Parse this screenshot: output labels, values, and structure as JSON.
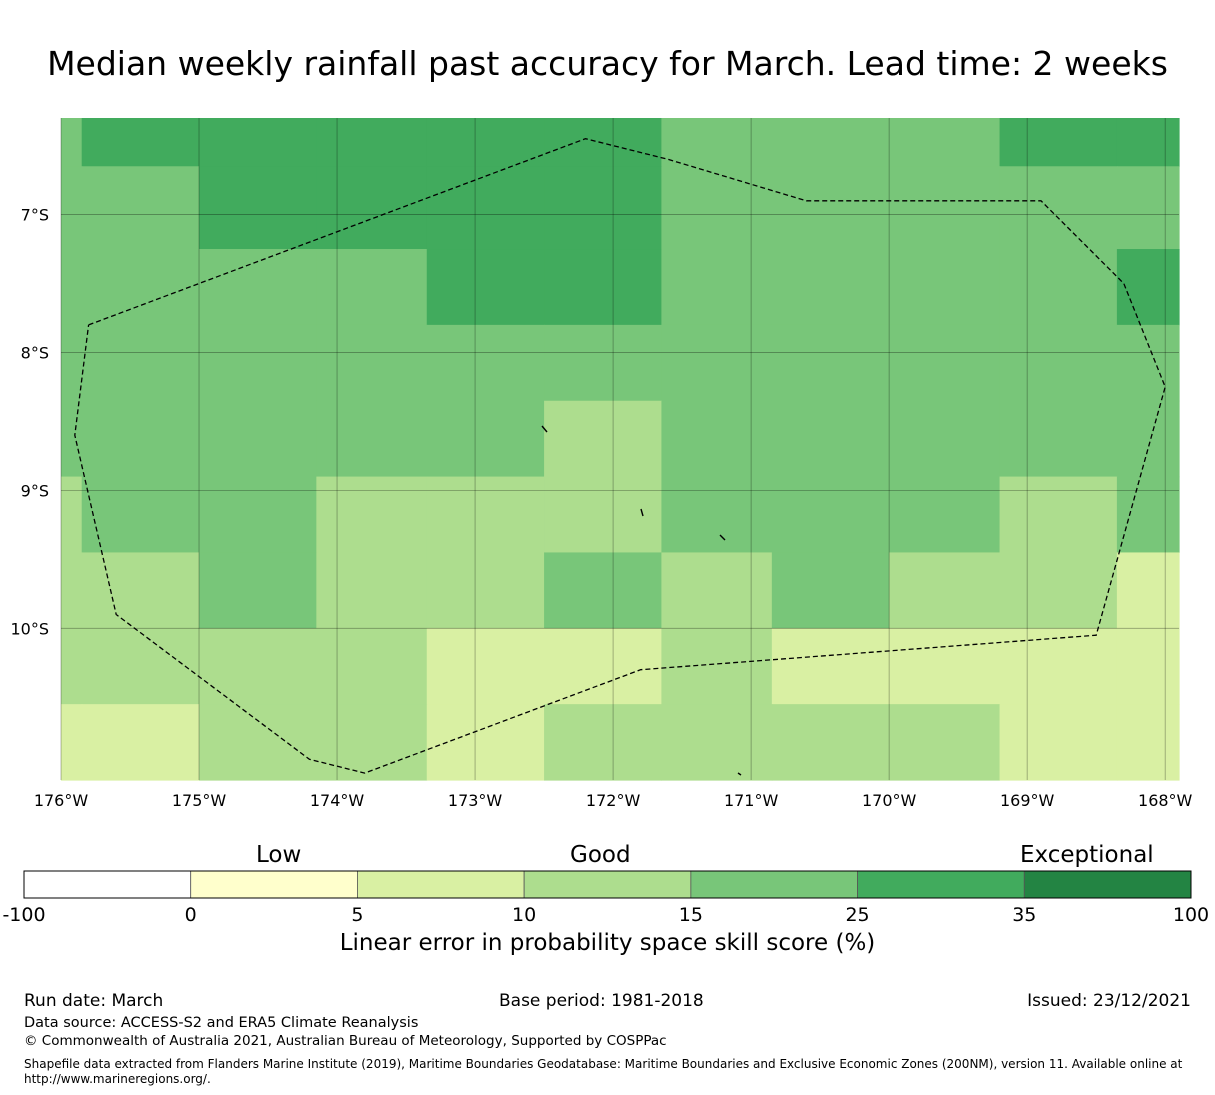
{
  "title": "Median weekly rainfall past accuracy for March. Lead time: 2 weeks",
  "map": {
    "lon_ticks": [
      "176°W",
      "175°W",
      "174°W",
      "173°W",
      "172°W",
      "171°W",
      "170°W",
      "169°W",
      "168°W"
    ],
    "lat_ticks": [
      "7°S",
      "8°S",
      "9°S",
      "10°S"
    ],
    "lon_range": [
      -176,
      -168
    ],
    "lat_range": [
      -6.3,
      -11.1
    ],
    "grid": {
      "lon_edges": [
        -176,
        -175.85,
        -175,
        -174.15,
        -173.35,
        -172.5,
        -171.65,
        -170.85,
        -170,
        -169.2,
        -168.35,
        -167.9
      ],
      "lat_edges": [
        -6.3,
        -6.65,
        -7.25,
        -7.8,
        -8.35,
        -8.9,
        -9.45,
        -10.0,
        -10.55,
        -11.1
      ],
      "classes": [
        [
          4,
          5,
          5,
          5,
          5,
          5,
          4,
          4,
          4,
          5,
          5
        ],
        [
          4,
          4,
          5,
          5,
          5,
          5,
          4,
          4,
          4,
          4,
          4
        ],
        [
          4,
          4,
          4,
          4,
          5,
          5,
          4,
          4,
          4,
          4,
          5
        ],
        [
          4,
          4,
          4,
          4,
          4,
          4,
          4,
          4,
          4,
          4,
          4
        ],
        [
          4,
          4,
          4,
          4,
          4,
          3,
          4,
          4,
          4,
          4,
          4
        ],
        [
          3,
          4,
          4,
          3,
          3,
          3,
          4,
          4,
          4,
          3,
          4
        ],
        [
          3,
          3,
          4,
          3,
          3,
          4,
          3,
          4,
          3,
          3,
          2
        ],
        [
          3,
          3,
          3,
          3,
          2,
          2,
          3,
          2,
          2,
          2,
          2
        ],
        [
          2,
          2,
          3,
          3,
          2,
          3,
          3,
          3,
          3,
          2,
          2
        ]
      ]
    },
    "boundary": [
      [
        -175.8,
        -7.8
      ],
      [
        -172.2,
        -6.45
      ],
      [
        -171.6,
        -6.6
      ],
      [
        -170.6,
        -6.9
      ],
      [
        -168.9,
        -6.9
      ],
      [
        -168.3,
        -7.5
      ],
      [
        -168.0,
        -8.25
      ],
      [
        -168.5,
        -10.05
      ],
      [
        -171.8,
        -10.3
      ],
      [
        -173.8,
        -11.05
      ],
      [
        -174.2,
        -10.95
      ],
      [
        -175.6,
        -9.9
      ],
      [
        -175.9,
        -8.6
      ],
      [
        -175.8,
        -7.8
      ]
    ]
  },
  "colorbar": {
    "colors": [
      "#ffffff",
      "#ffffcc",
      "#d9f0a3",
      "#addd8e",
      "#78c679",
      "#41ab5d",
      "#238443"
    ],
    "ticks": [
      "-100",
      "0",
      "5",
      "10",
      "15",
      "25",
      "35",
      "100"
    ],
    "category_labels": {
      "low": "Low",
      "good": "Good",
      "exceptional": "Exceptional"
    },
    "title": "Linear error in probability space skill score (%)"
  },
  "footer": {
    "run_date": "Run date: March",
    "base_period": "Base period: 1981-2018",
    "issued": "Issued: 23/12/2021",
    "data_source": "Data source: ACCESS-S2 and ERA5 Climate Reanalysis",
    "copyright": "© Commonwealth of Australia 2021, Australian Bureau of Meteorology, Supported by COSPPac",
    "shapefile": "Shapefile data extracted from Flanders Marine Institute (2019), Maritime Boundaries Geodatabase: Maritime Boundaries and Exclusive Economic Zones (200NM), version 11. Available online at http://www.marineregions.org/."
  }
}
